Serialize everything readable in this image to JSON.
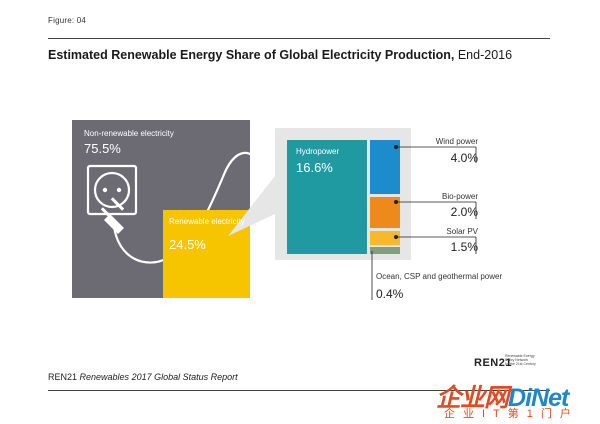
{
  "figure_label": "Figure: 04",
  "title": {
    "main": "Estimated Renewable Energy Share of Global Electricity Production,",
    "date": "End-2016"
  },
  "footer": {
    "org": "REN21",
    "report": "Renewables 2017 Global Status Report"
  },
  "logo": {
    "name": "REN21",
    "tagline": [
      "Renewable Energy",
      "Policy Network",
      "for the 21st Century"
    ]
  },
  "watermark": {
    "main": "企业网",
    "brand": "DiNet",
    "sub": "企业IT第1门户"
  },
  "colors": {
    "non_renewable": "#6c6b74",
    "renewable": "#f7c400",
    "hydropower": "#1f9aa0",
    "wind": "#1d8ccd",
    "bio": "#ee8a1c",
    "solar": "#f7b829",
    "ocean": "#7f9f7e"
  },
  "chart_data": {
    "type": "treemap",
    "total": {
      "non_renewable": {
        "label": "Non-renewable electricity",
        "value": 75.5,
        "display": "75.5%"
      },
      "renewable": {
        "label": "Renewable electricity",
        "value": 24.5,
        "display": "24.5%"
      }
    },
    "renewable_breakdown": [
      {
        "name": "Hydropower",
        "value": 16.6,
        "display": "16.6%"
      },
      {
        "name": "Wind power",
        "value": 4.0,
        "display": "4.0%"
      },
      {
        "name": "Bio-power",
        "value": 2.0,
        "display": "2.0%"
      },
      {
        "name": "Solar PV",
        "value": 1.5,
        "display": "1.5%"
      },
      {
        "name": "Ocean, CSP and geothermal power",
        "value": 0.4,
        "display": "0.4%"
      }
    ]
  }
}
